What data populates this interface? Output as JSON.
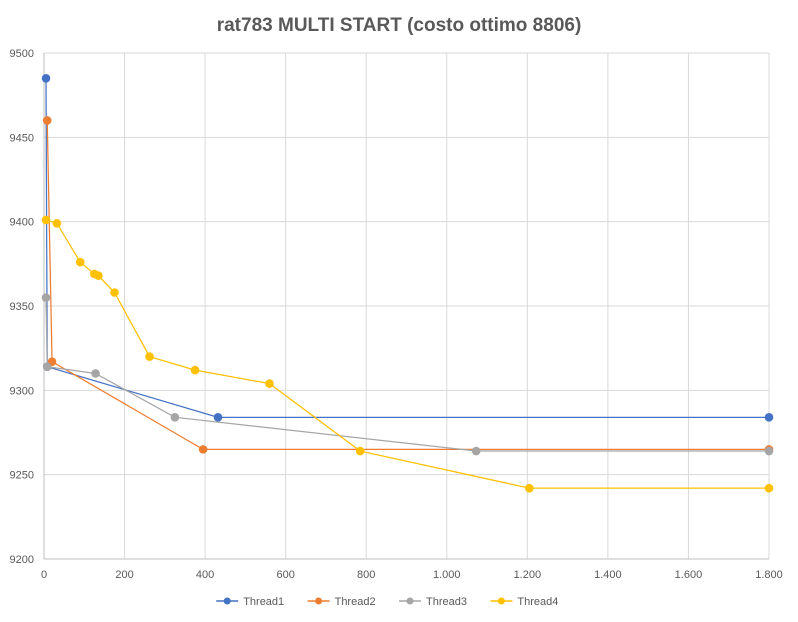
{
  "chart_data": {
    "type": "scatter",
    "title": "rat783 MULTI START (costo ottimo 8806)",
    "xlabel": "",
    "ylabel": "",
    "xlim": [
      0,
      1800
    ],
    "ylim": [
      9200,
      9500
    ],
    "x_ticks": [
      0,
      200,
      400,
      600,
      800,
      1000,
      1200,
      1400,
      1600,
      1800
    ],
    "x_tick_labels": [
      "0",
      "200",
      "400",
      "600",
      "800",
      "1.000",
      "1.200",
      "1.400",
      "1.600",
      "1.800"
    ],
    "y_ticks": [
      9200,
      9250,
      9300,
      9350,
      9400,
      9450,
      9500
    ],
    "y_tick_labels": [
      "9200",
      "9250",
      "9300",
      "9350",
      "9400",
      "9450",
      "9500"
    ],
    "grid": true,
    "legend_position": "bottom",
    "series": [
      {
        "name": "Thread1",
        "color": "#4472c4",
        "points": [
          [
            5,
            9485
          ],
          [
            8,
            9314
          ],
          [
            432,
            9284
          ],
          [
            1800,
            9284
          ]
        ]
      },
      {
        "name": "Thread2",
        "color": "#ed7d31",
        "points": [
          [
            8,
            9460
          ],
          [
            20,
            9317
          ],
          [
            395,
            9265
          ],
          [
            1800,
            9265
          ]
        ]
      },
      {
        "name": "Thread3",
        "color": "#a5a5a5",
        "points": [
          [
            5,
            9355
          ],
          [
            8,
            9314
          ],
          [
            128,
            9310
          ],
          [
            325,
            9284
          ],
          [
            1073,
            9264
          ],
          [
            1800,
            9264
          ]
        ]
      },
      {
        "name": "Thread4",
        "color": "#ffc000",
        "points": [
          [
            5,
            9401
          ],
          [
            32,
            9399
          ],
          [
            90,
            9376
          ],
          [
            125,
            9369
          ],
          [
            135,
            9368
          ],
          [
            175,
            9358
          ],
          [
            262,
            9320
          ],
          [
            375,
            9312
          ],
          [
            560,
            9304
          ],
          [
            785,
            9264
          ],
          [
            1205,
            9242
          ],
          [
            1800,
            9242
          ]
        ]
      }
    ]
  }
}
